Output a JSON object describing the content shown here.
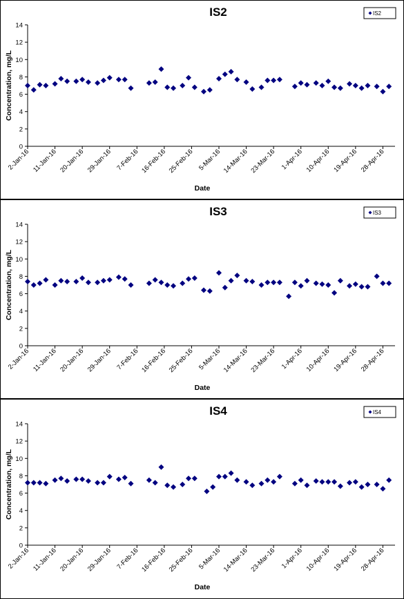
{
  "chart_data": [
    {
      "type": "scatter",
      "title": "IS2",
      "xlabel": "Date",
      "ylabel": "Concentration, mg/L",
      "ylim": [
        0,
        14
      ],
      "yticks": [
        "0",
        "2",
        "4",
        "6",
        "8",
        "10",
        "12",
        "14"
      ],
      "xlim": [
        "2016-01-02",
        "2016-05-02"
      ],
      "xticks": [
        "2-Jan-16",
        "11-Jan-16",
        "20-Jan-16",
        "29-Jan-16",
        "7-Feb-16",
        "16-Feb-16",
        "25-Feb-16",
        "5-Mar-16",
        "14-Mar-16",
        "23-Mar-16",
        "1-Apr-16",
        "10-Apr-16",
        "19-Apr-16",
        "28-Apr-16"
      ],
      "grid": false,
      "legend_position": "top-right",
      "marker_color": "#000080",
      "series": [
        {
          "name": "IS2",
          "x": [
            "2016-01-02",
            "2016-01-04",
            "2016-01-06",
            "2016-01-08",
            "2016-01-11",
            "2016-01-13",
            "2016-01-15",
            "2016-01-18",
            "2016-01-20",
            "2016-01-22",
            "2016-01-25",
            "2016-01-27",
            "2016-01-29",
            "2016-02-01",
            "2016-02-03",
            "2016-02-05",
            "2016-02-11",
            "2016-02-13",
            "2016-02-15",
            "2016-02-17",
            "2016-02-19",
            "2016-02-22",
            "2016-02-24",
            "2016-02-26",
            "2016-02-29",
            "2016-03-02",
            "2016-03-05",
            "2016-03-07",
            "2016-03-09",
            "2016-03-11",
            "2016-03-14",
            "2016-03-16",
            "2016-03-19",
            "2016-03-21",
            "2016-03-23",
            "2016-03-25",
            "2016-03-30",
            "2016-04-01",
            "2016-04-03",
            "2016-04-06",
            "2016-04-08",
            "2016-04-10",
            "2016-04-12",
            "2016-04-14",
            "2016-04-17",
            "2016-04-19",
            "2016-04-21",
            "2016-04-23",
            "2016-04-26",
            "2016-04-28",
            "2016-04-30"
          ],
          "y": [
            7.0,
            6.5,
            7.1,
            7.0,
            7.2,
            7.8,
            7.5,
            7.5,
            7.7,
            7.4,
            7.3,
            7.6,
            7.9,
            7.7,
            7.7,
            6.7,
            7.3,
            7.4,
            8.9,
            6.8,
            6.7,
            7.0,
            7.9,
            6.8,
            6.3,
            6.5,
            7.8,
            8.3,
            8.6,
            7.7,
            7.4,
            6.6,
            6.8,
            7.6,
            7.6,
            7.7,
            6.9,
            7.3,
            7.1,
            7.3,
            7.0,
            7.5,
            6.8,
            6.7,
            7.2,
            7.0,
            6.7,
            7.0,
            6.9,
            6.3,
            6.9
          ]
        }
      ]
    },
    {
      "type": "scatter",
      "title": "IS3",
      "xlabel": "Date",
      "ylabel": "Concentration, mg/L",
      "ylim": [
        0,
        14
      ],
      "yticks": [
        "0",
        "2",
        "4",
        "6",
        "8",
        "10",
        "12",
        "14"
      ],
      "xlim": [
        "2016-01-02",
        "2016-05-02"
      ],
      "xticks": [
        "2-Jan-16",
        "11-Jan-16",
        "20-Jan-16",
        "29-Jan-16",
        "7-Feb-16",
        "16-Feb-16",
        "25-Feb-16",
        "5-Mar-16",
        "14-Mar-16",
        "23-Mar-16",
        "1-Apr-16",
        "10-Apr-16",
        "19-Apr-16",
        "28-Apr-16"
      ],
      "grid": false,
      "legend_position": "top-right",
      "marker_color": "#000080",
      "series": [
        {
          "name": "IS3",
          "x": [
            "2016-01-02",
            "2016-01-04",
            "2016-01-06",
            "2016-01-08",
            "2016-01-11",
            "2016-01-13",
            "2016-01-15",
            "2016-01-18",
            "2016-01-20",
            "2016-01-22",
            "2016-01-25",
            "2016-01-27",
            "2016-01-29",
            "2016-02-01",
            "2016-02-03",
            "2016-02-05",
            "2016-02-11",
            "2016-02-13",
            "2016-02-15",
            "2016-02-17",
            "2016-02-19",
            "2016-02-22",
            "2016-02-24",
            "2016-02-26",
            "2016-02-29",
            "2016-03-02",
            "2016-03-05",
            "2016-03-07",
            "2016-03-09",
            "2016-03-11",
            "2016-03-14",
            "2016-03-16",
            "2016-03-19",
            "2016-03-21",
            "2016-03-23",
            "2016-03-25",
            "2016-03-28",
            "2016-03-30",
            "2016-04-01",
            "2016-04-03",
            "2016-04-06",
            "2016-04-08",
            "2016-04-10",
            "2016-04-12",
            "2016-04-14",
            "2016-04-17",
            "2016-04-19",
            "2016-04-21",
            "2016-04-23",
            "2016-04-26",
            "2016-04-28",
            "2016-04-30"
          ],
          "y": [
            7.4,
            7.0,
            7.2,
            7.6,
            7.0,
            7.5,
            7.4,
            7.4,
            7.8,
            7.3,
            7.3,
            7.5,
            7.6,
            7.9,
            7.7,
            7.0,
            7.2,
            7.6,
            7.3,
            7.0,
            6.9,
            7.2,
            7.7,
            7.8,
            6.4,
            6.3,
            8.4,
            6.7,
            7.5,
            8.1,
            7.5,
            7.4,
            7.0,
            7.3,
            7.3,
            7.3,
            5.7,
            7.3,
            6.9,
            7.5,
            7.2,
            7.1,
            7.0,
            6.1,
            7.5,
            6.9,
            7.1,
            6.8,
            6.8,
            8.0,
            7.2,
            7.2
          ]
        }
      ]
    },
    {
      "type": "scatter",
      "title": "IS4",
      "xlabel": "Date",
      "ylabel": "Concentration, mg/L",
      "ylim": [
        0,
        14
      ],
      "yticks": [
        "0",
        "2",
        "4",
        "6",
        "8",
        "10",
        "12",
        "14"
      ],
      "xlim": [
        "2016-01-02",
        "2016-05-02"
      ],
      "xticks": [
        "2-Jan-16",
        "11-Jan-16",
        "20-Jan-16",
        "29-Jan-16",
        "7-Feb-16",
        "16-Feb-16",
        "25-Feb-16",
        "5-Mar-16",
        "14-Mar-16",
        "23-Mar-16",
        "1-Apr-16",
        "10-Apr-16",
        "19-Apr-16",
        "28-Apr-16"
      ],
      "grid": false,
      "legend_position": "top-right",
      "marker_color": "#000080",
      "series": [
        {
          "name": "IS4",
          "x": [
            "2016-01-02",
            "2016-01-04",
            "2016-01-06",
            "2016-01-08",
            "2016-01-11",
            "2016-01-13",
            "2016-01-15",
            "2016-01-18",
            "2016-01-20",
            "2016-01-22",
            "2016-01-25",
            "2016-01-27",
            "2016-01-29",
            "2016-02-01",
            "2016-02-03",
            "2016-02-05",
            "2016-02-11",
            "2016-02-13",
            "2016-02-15",
            "2016-02-17",
            "2016-02-19",
            "2016-02-22",
            "2016-02-24",
            "2016-02-26",
            "2016-03-01",
            "2016-03-03",
            "2016-03-05",
            "2016-03-07",
            "2016-03-09",
            "2016-03-11",
            "2016-03-14",
            "2016-03-16",
            "2016-03-19",
            "2016-03-21",
            "2016-03-23",
            "2016-03-25",
            "2016-03-30",
            "2016-04-01",
            "2016-04-03",
            "2016-04-06",
            "2016-04-08",
            "2016-04-10",
            "2016-04-12",
            "2016-04-14",
            "2016-04-17",
            "2016-04-19",
            "2016-04-21",
            "2016-04-23",
            "2016-04-26",
            "2016-04-28",
            "2016-04-30"
          ],
          "y": [
            7.2,
            7.2,
            7.2,
            7.1,
            7.5,
            7.7,
            7.4,
            7.6,
            7.6,
            7.4,
            7.2,
            7.2,
            7.9,
            7.6,
            7.8,
            7.1,
            7.5,
            7.2,
            9.0,
            6.9,
            6.7,
            7.0,
            7.7,
            7.7,
            6.2,
            6.7,
            7.9,
            7.9,
            8.3,
            7.5,
            7.3,
            6.9,
            7.1,
            7.5,
            7.3,
            7.9,
            7.1,
            7.5,
            6.9,
            7.4,
            7.3,
            7.3,
            7.3,
            6.8,
            7.2,
            7.3,
            6.7,
            7.0,
            7.0,
            6.5,
            7.5
          ]
        }
      ]
    }
  ]
}
